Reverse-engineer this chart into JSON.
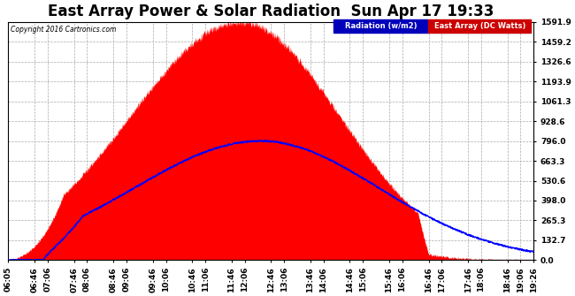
{
  "title": "East Array Power & Solar Radiation  Sun Apr 17 19:33",
  "copyright": "Copyright 2016 Cartronics.com",
  "legend_radiation": "Radiation (w/m2)",
  "legend_east": "East Array (DC Watts)",
  "radiation_color": "#0000ff",
  "east_color": "#ff0000",
  "legend_radiation_bg": "#0000bb",
  "legend_east_bg": "#cc0000",
  "bg_color": "#ffffff",
  "grid_color": "#aaaaaa",
  "y_max": 1591.9,
  "y_min": 0.0,
  "y_ticks": [
    0.0,
    132.7,
    265.3,
    398.0,
    530.6,
    663.3,
    796.0,
    928.6,
    1061.3,
    1193.9,
    1326.6,
    1459.2,
    1591.9
  ],
  "x_labels": [
    "06:05",
    "06:46",
    "07:06",
    "07:46",
    "08:06",
    "08:46",
    "09:06",
    "09:46",
    "10:06",
    "10:46",
    "11:06",
    "11:46",
    "12:06",
    "12:46",
    "13:06",
    "13:46",
    "14:06",
    "14:46",
    "15:06",
    "15:46",
    "16:06",
    "16:46",
    "17:06",
    "17:46",
    "18:06",
    "18:46",
    "19:06",
    "19:26"
  ],
  "title_fontsize": 12,
  "tick_fontsize": 6.5,
  "radiation_peak": 796.0,
  "east_peak": 1591.9
}
